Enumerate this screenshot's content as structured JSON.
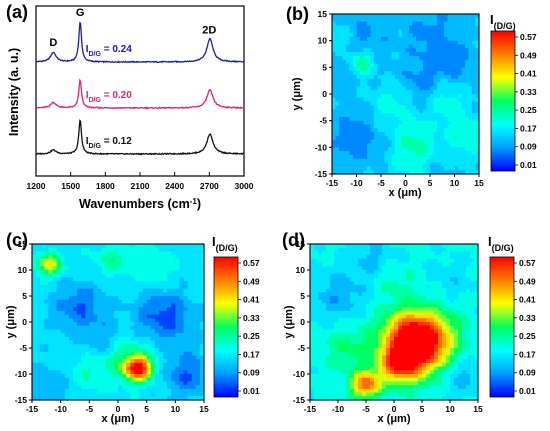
{
  "panels": {
    "a": {
      "label": "(a)"
    },
    "b": {
      "label": "(b)"
    },
    "c": {
      "label": "(c)"
    },
    "d": {
      "label": "(d)"
    }
  },
  "colors": {
    "blue_spectrum": "#1c1ca8",
    "pink_spectrum": "#e0207a",
    "black_spectrum": "#111111",
    "colormap": [
      "#0000ff",
      "#00a0ff",
      "#00ffff",
      "#00ff60",
      "#ffff00",
      "#ff8000",
      "#ff0000"
    ]
  },
  "chart_data": [
    {
      "panel": "a",
      "type": "line",
      "xlabel": "Wavenumbers (cm",
      "xlabel_sup": "-1",
      "xlabel_tail": ")",
      "ylabel": "Intensity (a. u.)",
      "xlim": [
        1200,
        3000
      ],
      "xticks": [
        1200,
        1500,
        1800,
        2100,
        2400,
        2700,
        3000
      ],
      "peak_labels": [
        {
          "text": "D",
          "x": 1350
        },
        {
          "text": "G",
          "x": 1582
        },
        {
          "text": "2D",
          "x": 2700
        }
      ],
      "series": [
        {
          "id_sub": "D/G",
          "ratio_prefix": "I",
          "ratio_value": " = 0.24",
          "color": "#1c1ca8",
          "offset": 2.0,
          "peaks": [
            {
              "x": 1350,
              "h": 0.24,
              "w": 28
            },
            {
              "x": 1582,
              "h": 1.0,
              "w": 14
            },
            {
              "x": 2705,
              "h": 0.58,
              "w": 32
            }
          ]
        },
        {
          "id_sub": "D/G",
          "ratio_prefix": "I",
          "ratio_value": " = 0.20",
          "color": "#e0207a",
          "offset": 1.0,
          "peaks": [
            {
              "x": 1350,
              "h": 0.14,
              "w": 28
            },
            {
              "x": 1582,
              "h": 0.7,
              "w": 14
            },
            {
              "x": 2705,
              "h": 0.45,
              "w": 32
            }
          ]
        },
        {
          "id_sub": "D/G",
          "ratio_prefix": "I",
          "ratio_value": " = 0.12",
          "color": "#111111",
          "offset": 0.0,
          "peaks": [
            {
              "x": 1350,
              "h": 0.1,
              "w": 28
            },
            {
              "x": 1582,
              "h": 0.85,
              "w": 14
            },
            {
              "x": 2705,
              "h": 0.5,
              "w": 32
            }
          ]
        }
      ]
    },
    {
      "panel": "b",
      "type": "heatmap",
      "xlabel": "x (μm)",
      "ylabel": "y (μm)",
      "xlim": [
        -15,
        15
      ],
      "ylim": [
        -15,
        15
      ],
      "xticks": [
        -15,
        -10,
        -5,
        0,
        5,
        10,
        15
      ],
      "yticks": [
        -15,
        -10,
        -5,
        0,
        5,
        10,
        15
      ],
      "colorbar_title": "I",
      "colorbar_sub": "(D/G)",
      "colorbar_ticks": [
        "0.57",
        "0.49",
        "0.41",
        "0.33",
        "0.25",
        "0.17",
        "0.09",
        "0.01"
      ],
      "zlim": [
        0.01,
        0.57
      ],
      "base": 0.14,
      "blobs": [
        {
          "x": -13,
          "y": 10,
          "amp": 0.1,
          "r": 2.5
        },
        {
          "x": -9,
          "y": 6,
          "amp": 0.16,
          "r": 1.8
        },
        {
          "x": -11,
          "y": 9,
          "amp": -0.09,
          "r": 3.5
        },
        {
          "x": 5,
          "y": 11,
          "amp": -0.05,
          "r": 3
        },
        {
          "x": 10,
          "y": 6,
          "amp": -0.06,
          "r": 2.5
        },
        {
          "x": 8,
          "y": -1,
          "amp": 0.08,
          "r": 3
        },
        {
          "x": 4,
          "y": 2,
          "amp": -0.06,
          "r": 3
        },
        {
          "x": 12,
          "y": -8,
          "amp": 0.08,
          "r": 3
        },
        {
          "x": 2,
          "y": -9,
          "amp": 0.09,
          "r": 3
        },
        {
          "x": -3,
          "y": -2,
          "amp": 0.07,
          "r": 3
        },
        {
          "x": -10,
          "y": -8,
          "amp": -0.06,
          "r": 3
        },
        {
          "x": 0,
          "y": -13,
          "amp": 0.05,
          "r": 2.5
        }
      ]
    },
    {
      "panel": "c",
      "type": "heatmap",
      "xlabel": "x (μm)",
      "ylabel": "y (μm)",
      "xlim": [
        -15,
        15
      ],
      "ylim": [
        -15,
        15
      ],
      "xticks": [
        -15,
        -10,
        -5,
        0,
        5,
        10,
        15
      ],
      "yticks": [
        -15,
        -10,
        -5,
        0,
        5,
        10,
        15
      ],
      "colorbar_title": "I",
      "colorbar_sub": "(D/G)",
      "colorbar_ticks": [
        "0.57",
        "0.49",
        "0.41",
        "0.33",
        "0.25",
        "0.17",
        "0.09",
        "0.01"
      ],
      "zlim": [
        0.01,
        0.57
      ],
      "base": 0.17,
      "blobs": [
        {
          "x": -12,
          "y": 11,
          "amp": 0.22,
          "r": 1.5
        },
        {
          "x": 3.5,
          "y": -9,
          "amp": 0.4,
          "r": 1.6
        },
        {
          "x": 2,
          "y": -7,
          "amp": 0.1,
          "r": 3
        },
        {
          "x": 8,
          "y": 1,
          "amp": -0.12,
          "r": 3.5
        },
        {
          "x": -7,
          "y": 3,
          "amp": -0.1,
          "r": 3
        },
        {
          "x": -3,
          "y": -3,
          "amp": -0.06,
          "r": 2.5
        },
        {
          "x": 12,
          "y": -10,
          "amp": -0.1,
          "r": 3
        },
        {
          "x": -1,
          "y": 12,
          "amp": 0.08,
          "r": 2
        },
        {
          "x": -12,
          "y": -12,
          "amp": -0.05,
          "r": 3
        },
        {
          "x": 6,
          "y": 11,
          "amp": 0.05,
          "r": 3
        },
        {
          "x": -5,
          "y": -10,
          "amp": 0.06,
          "r": 2.5
        }
      ]
    },
    {
      "panel": "d",
      "type": "heatmap",
      "xlabel": "x (μm)",
      "ylabel": "y (μm)",
      "xlim": [
        -15,
        15
      ],
      "ylim": [
        -15,
        15
      ],
      "xticks": [
        -15,
        -10,
        -5,
        0,
        5,
        10,
        15
      ],
      "yticks": [
        -15,
        -10,
        -5,
        0,
        5,
        10,
        15
      ],
      "colorbar_title": "I",
      "colorbar_sub": "(D/G)",
      "colorbar_ticks": [
        "0.57",
        "0.49",
        "0.41",
        "0.33",
        "0.25",
        "0.17",
        "0.09",
        "0.01"
      ],
      "zlim": [
        0.01,
        0.57
      ],
      "base": 0.2,
      "blobs": [
        {
          "x": 5,
          "y": -4,
          "amp": 0.42,
          "r": 4
        },
        {
          "x": 1,
          "y": -8,
          "amp": 0.3,
          "r": 2.5
        },
        {
          "x": -5,
          "y": -12,
          "amp": 0.3,
          "r": 1.8
        },
        {
          "x": 2,
          "y": -2,
          "amp": 0.12,
          "r": 3
        },
        {
          "x": -8,
          "y": -5,
          "amp": 0.08,
          "r": 3
        },
        {
          "x": -10,
          "y": 5,
          "amp": -0.08,
          "r": 3.5
        },
        {
          "x": -4,
          "y": 12,
          "amp": -0.06,
          "r": 3
        },
        {
          "x": 12,
          "y": -10,
          "amp": -0.08,
          "r": 3
        },
        {
          "x": 10,
          "y": 8,
          "amp": -0.04,
          "r": 3
        },
        {
          "x": 0,
          "y": 8,
          "amp": 0.05,
          "r": 2.5
        }
      ]
    }
  ]
}
